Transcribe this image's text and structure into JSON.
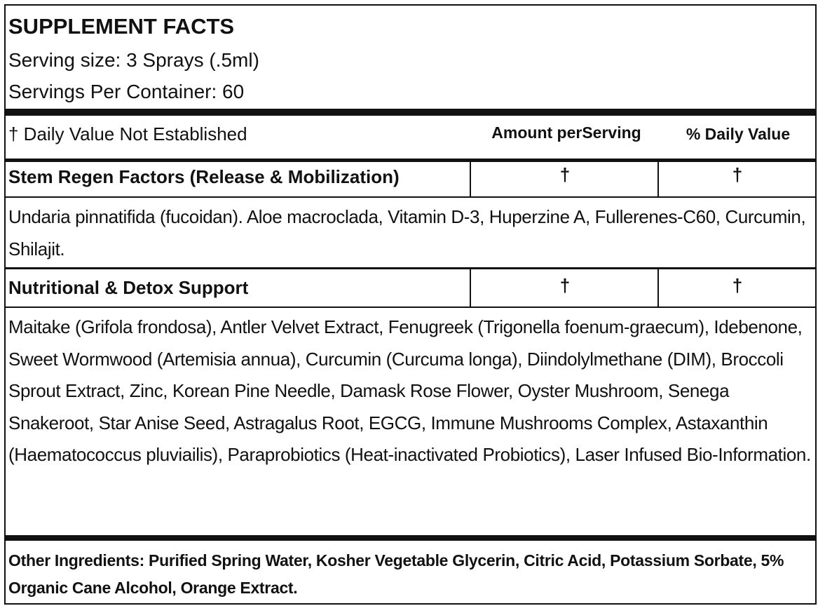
{
  "header": {
    "title": "SUPPLEMENT FACTS",
    "serving_size": "Serving size: 3 Sprays (.5ml)",
    "servings_per_container": "Servings Per Container: 60"
  },
  "column_header": {
    "note": "† Daily Value Not Established",
    "amount": "Amount perServing",
    "daily_value": "% Daily Value"
  },
  "sections": [
    {
      "name": "Stem Regen Factors (Release & Mobilization)",
      "amount": "†",
      "daily_value": "†",
      "ingredients": "Undaria pinnatifida (fucoidan). Aloe macroclada, Vitamin D-3, Huperzine A, Fullerenes-C60, Curcumin, Shilajit."
    },
    {
      "name": "Nutritional & Detox Support",
      "amount": "†",
      "daily_value": "†",
      "ingredients": "Maitake (Grifola frondosa), Antler Velvet Extract, Fenugreek (Trigonella foenum-graecum), Idebenone, Sweet Wormwood (Artemisia annua), Curcumin (Curcuma longa), Diindolylmethane (DIM), Broccoli Sprout Extract, Zinc, Korean Pine Needle, Damask Rose Flower, Oyster Mushroom, Senega Snakeroot, Star Anise Seed, Astragalus Root, EGCG, Immune Mushrooms Complex, Astaxanthin (Haematococcus pluviailis), Paraprobiotics (Heat-inactivated Probiotics), Laser Infused Bio-Information."
    }
  ],
  "other_ingredients": "Other Ingredients: Purified Spring Water, Kosher Vegetable Glycerin, Citric Acid, Potassium Sorbate, 5% Organic Cane Alcohol, Orange Extract."
}
